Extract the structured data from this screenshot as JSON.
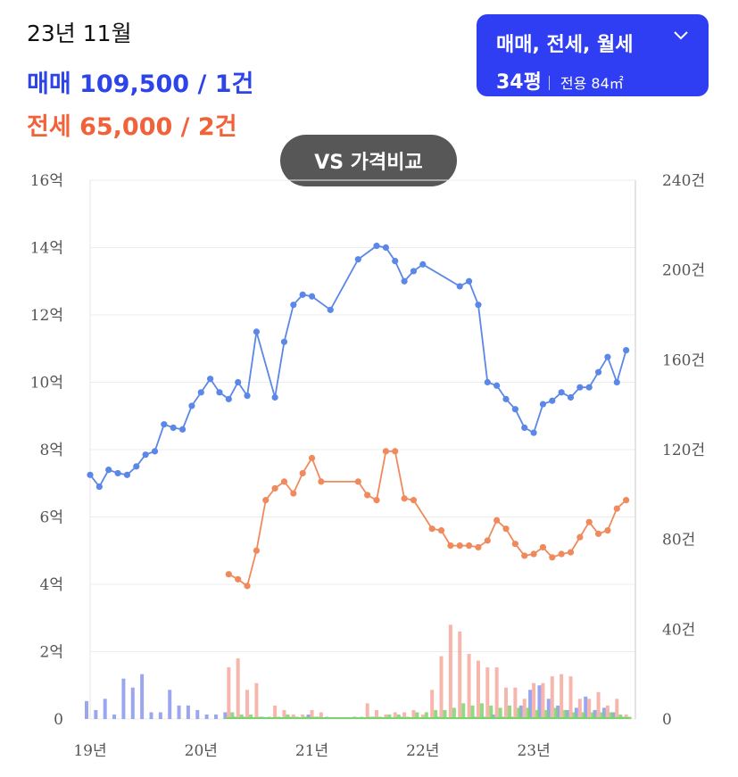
{
  "header": {
    "date": "23년 11월",
    "sale_line": "매매 109,500 / 1건",
    "jeonse_line": "전세 65,000 / 2건"
  },
  "filter": {
    "types_label": "매매, 전세, 월세",
    "area_label": "34평",
    "area_sub": "전용 84㎡",
    "chevron_icon": "chevron-down-icon"
  },
  "compare_button": {
    "label": "VS 가격비교"
  },
  "colors": {
    "sale": "#5b87e8",
    "jeonse": "#f08a5d",
    "sale_bar": "#8a96ee",
    "jeonse_bar": "#f6a99d",
    "rent_bar": "#7dd36b",
    "accent": "#2f3ef2"
  },
  "chart_data": {
    "type": "line",
    "left_axis": {
      "ticks": [
        "0",
        "2억",
        "4억",
        "6억",
        "8억",
        "10억",
        "12억",
        "14억",
        "16억"
      ],
      "range": [
        0,
        16
      ]
    },
    "right_axis": {
      "ticks": [
        "0",
        "40건",
        "80건",
        "120건",
        "160건",
        "200건",
        "240건"
      ],
      "range": [
        0,
        240
      ]
    },
    "x_axis": {
      "ticks": [
        "19년",
        "20년",
        "21년",
        "22년",
        "23년"
      ],
      "tick_positions": [
        0,
        12,
        24,
        36,
        48
      ],
      "range": [
        0,
        59
      ]
    },
    "series": [
      {
        "key": "sale",
        "points": [
          [
            0,
            7.25
          ],
          [
            1,
            6.9
          ],
          [
            2,
            7.4
          ],
          [
            3,
            7.3
          ],
          [
            4,
            7.25
          ],
          [
            5,
            7.5
          ],
          [
            6,
            7.85
          ],
          [
            7,
            7.95
          ],
          [
            8,
            8.75
          ],
          [
            9,
            8.65
          ],
          [
            10,
            8.6
          ],
          [
            11,
            9.3
          ],
          [
            12,
            9.7
          ],
          [
            13,
            10.1
          ],
          [
            14,
            9.7
          ],
          [
            15,
            9.5
          ],
          [
            16,
            10
          ],
          [
            17,
            9.6
          ],
          [
            18,
            11.5
          ],
          [
            20,
            9.55
          ],
          [
            21,
            11.2
          ],
          [
            22,
            12.3
          ],
          [
            23,
            12.6
          ],
          [
            24,
            12.55
          ],
          [
            26,
            12.15
          ],
          [
            29,
            13.65
          ],
          [
            31,
            14.05
          ],
          [
            32,
            14
          ],
          [
            33,
            13.6
          ],
          [
            34,
            13
          ],
          [
            35,
            13.3
          ],
          [
            36,
            13.5
          ],
          [
            40,
            12.85
          ],
          [
            41,
            13
          ],
          [
            42,
            12.3
          ],
          [
            43,
            10
          ],
          [
            44,
            9.9
          ],
          [
            45,
            9.5
          ],
          [
            46,
            9.2
          ],
          [
            47,
            8.65
          ],
          [
            48,
            8.5
          ],
          [
            49,
            9.35
          ],
          [
            50,
            9.45
          ],
          [
            51,
            9.7
          ],
          [
            52,
            9.55
          ],
          [
            53,
            9.85
          ],
          [
            54,
            9.85
          ],
          [
            55,
            10.3
          ],
          [
            56,
            10.75
          ],
          [
            57,
            10
          ],
          [
            58,
            10.95
          ]
        ]
      },
      {
        "key": "jeonse",
        "points": [
          [
            15,
            4.3
          ],
          [
            16,
            4.15
          ],
          [
            17,
            3.95
          ],
          [
            18,
            5
          ],
          [
            19,
            6.5
          ],
          [
            20,
            6.85
          ],
          [
            21,
            7.05
          ],
          [
            22,
            6.7
          ],
          [
            23,
            7.3
          ],
          [
            24,
            7.75
          ],
          [
            25,
            7.05
          ],
          [
            29,
            7.05
          ],
          [
            30,
            6.65
          ],
          [
            31,
            6.5
          ],
          [
            32,
            7.95
          ],
          [
            33,
            7.95
          ],
          [
            34,
            6.55
          ],
          [
            35,
            6.5
          ],
          [
            37,
            5.65
          ],
          [
            38,
            5.6
          ],
          [
            39,
            5.15
          ],
          [
            40,
            5.15
          ],
          [
            41,
            5.15
          ],
          [
            42,
            5.1
          ],
          [
            43,
            5.3
          ],
          [
            44,
            5.9
          ],
          [
            45,
            5.65
          ],
          [
            46,
            5.2
          ],
          [
            47,
            4.85
          ],
          [
            48,
            4.9
          ],
          [
            49,
            5.1
          ],
          [
            50,
            4.8
          ],
          [
            51,
            4.9
          ],
          [
            52,
            4.95
          ],
          [
            53,
            5.4
          ],
          [
            54,
            5.85
          ],
          [
            55,
            5.5
          ],
          [
            56,
            5.6
          ],
          [
            57,
            6.25
          ],
          [
            58,
            6.5
          ]
        ]
      }
    ],
    "bars": {
      "sale": [
        [
          0,
          8
        ],
        [
          1,
          4
        ],
        [
          2,
          9
        ],
        [
          3,
          2
        ],
        [
          4,
          18
        ],
        [
          5,
          14
        ],
        [
          6,
          20
        ],
        [
          7,
          3
        ],
        [
          8,
          3
        ],
        [
          9,
          13
        ],
        [
          10,
          6
        ],
        [
          11,
          6
        ],
        [
          12,
          4
        ],
        [
          13,
          2
        ],
        [
          14,
          2
        ],
        [
          15,
          3
        ],
        [
          16,
          1
        ],
        [
          17,
          1
        ],
        [
          19,
          1
        ],
        [
          22,
          1
        ],
        [
          24,
          2
        ],
        [
          25,
          1
        ],
        [
          26,
          1
        ],
        [
          29,
          1
        ],
        [
          31,
          1
        ],
        [
          34,
          1
        ],
        [
          38,
          1
        ],
        [
          42,
          1
        ],
        [
          43,
          1
        ],
        [
          44,
          2
        ],
        [
          45,
          1
        ],
        [
          46,
          1
        ],
        [
          47,
          6
        ],
        [
          48,
          13
        ],
        [
          49,
          15
        ],
        [
          50,
          9
        ],
        [
          51,
          6
        ],
        [
          52,
          4
        ],
        [
          53,
          5
        ],
        [
          54,
          10
        ],
        [
          55,
          4
        ],
        [
          56,
          5
        ],
        [
          57,
          3
        ],
        [
          58,
          1
        ]
      ],
      "jeonse": [
        [
          15,
          23
        ],
        [
          16,
          27
        ],
        [
          17,
          13
        ],
        [
          18,
          16
        ],
        [
          20,
          6
        ],
        [
          21,
          4
        ],
        [
          22,
          2
        ],
        [
          23,
          2
        ],
        [
          24,
          4
        ],
        [
          25,
          3
        ],
        [
          30,
          7
        ],
        [
          31,
          4
        ],
        [
          32,
          2
        ],
        [
          33,
          3
        ],
        [
          34,
          3
        ],
        [
          35,
          4
        ],
        [
          36,
          2
        ],
        [
          37,
          13
        ],
        [
          38,
          28
        ],
        [
          39,
          42
        ],
        [
          40,
          39
        ],
        [
          41,
          29
        ],
        [
          42,
          26
        ],
        [
          43,
          23
        ],
        [
          44,
          23
        ],
        [
          45,
          14
        ],
        [
          46,
          14
        ],
        [
          47,
          9
        ],
        [
          48,
          16
        ],
        [
          49,
          16
        ],
        [
          50,
          19
        ],
        [
          51,
          20
        ],
        [
          52,
          19
        ],
        [
          53,
          9
        ],
        [
          54,
          9
        ],
        [
          55,
          12
        ],
        [
          56,
          6
        ],
        [
          57,
          9
        ],
        [
          58,
          2
        ]
      ],
      "rent": [
        [
          15,
          3
        ],
        [
          16,
          2
        ],
        [
          17,
          2
        ],
        [
          18,
          1
        ],
        [
          19,
          1
        ],
        [
          20,
          1
        ],
        [
          21,
          2
        ],
        [
          22,
          1
        ],
        [
          23,
          1
        ],
        [
          24,
          1
        ],
        [
          29,
          1
        ],
        [
          30,
          1
        ],
        [
          31,
          1
        ],
        [
          32,
          2
        ],
        [
          33,
          2
        ],
        [
          34,
          1
        ],
        [
          35,
          3
        ],
        [
          36,
          3
        ],
        [
          37,
          4
        ],
        [
          38,
          4
        ],
        [
          39,
          5
        ],
        [
          40,
          7
        ],
        [
          41,
          6
        ],
        [
          42,
          7
        ],
        [
          43,
          6
        ],
        [
          44,
          5
        ],
        [
          45,
          6
        ],
        [
          46,
          5
        ],
        [
          47,
          5
        ],
        [
          48,
          4
        ],
        [
          49,
          4
        ],
        [
          50,
          5
        ],
        [
          51,
          4
        ],
        [
          52,
          3
        ],
        [
          53,
          3
        ],
        [
          54,
          3
        ],
        [
          55,
          3
        ],
        [
          56,
          3
        ],
        [
          57,
          2
        ],
        [
          58,
          1
        ]
      ]
    }
  }
}
